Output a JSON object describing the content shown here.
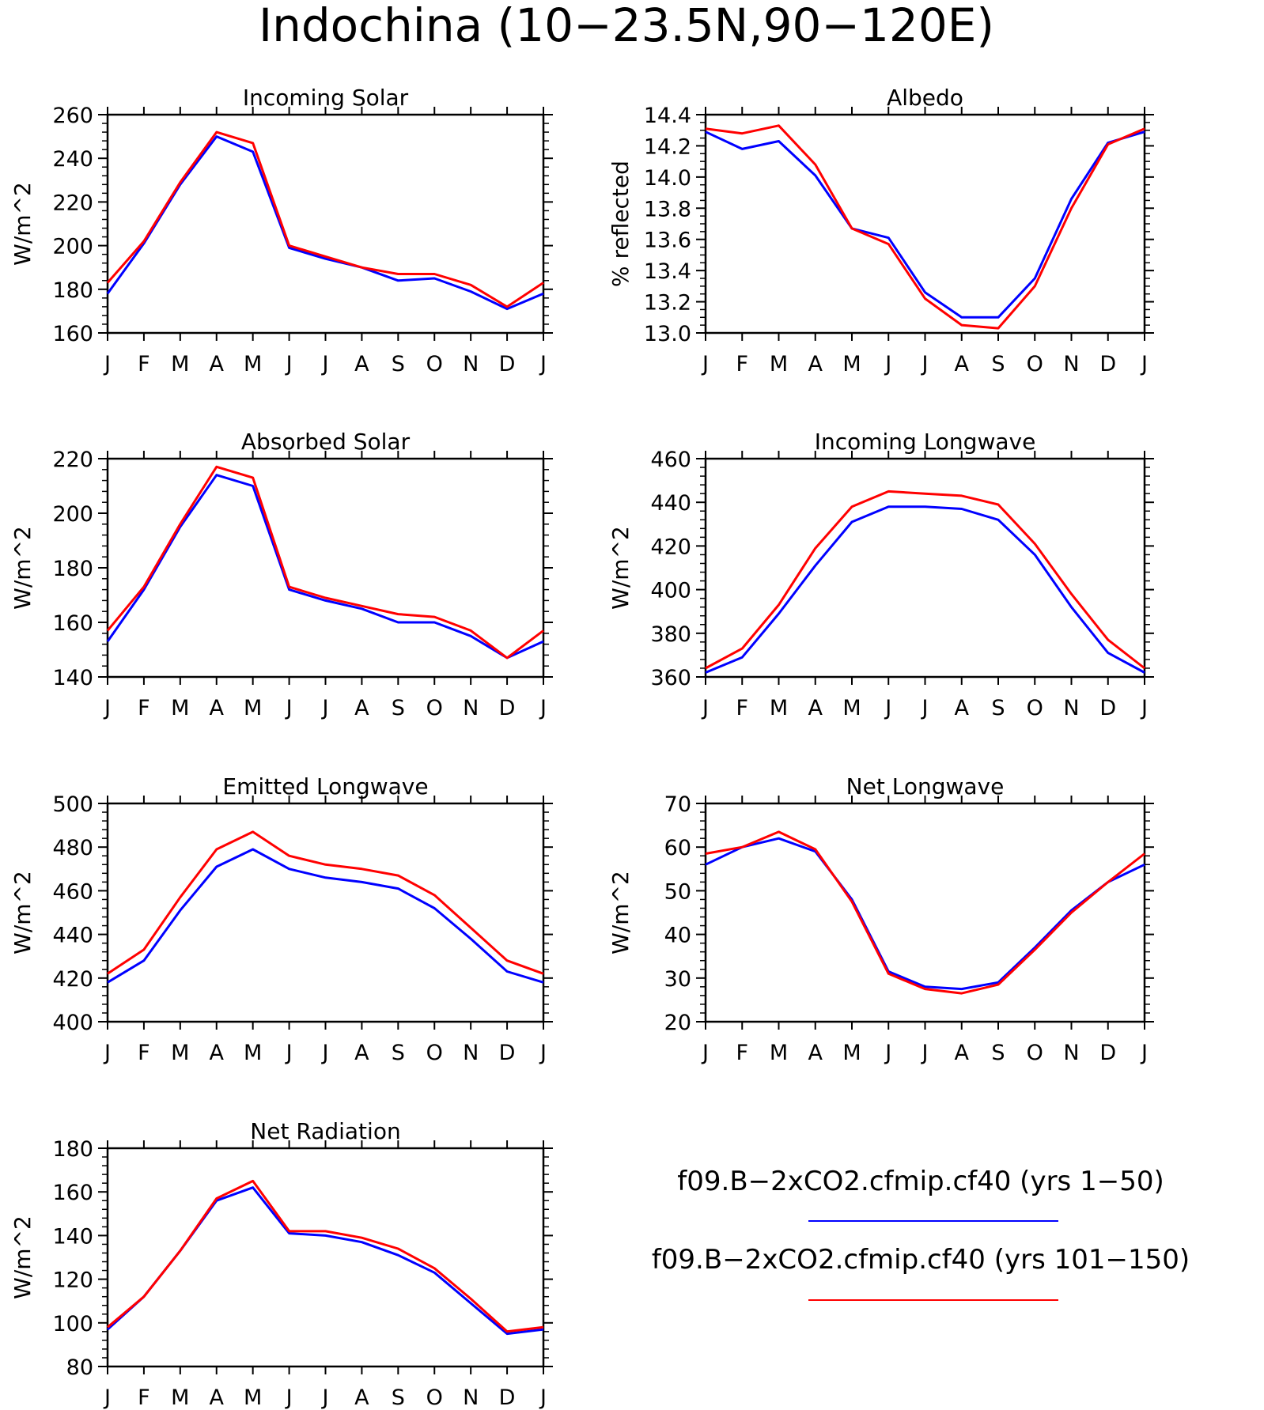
{
  "title": "Indochina (10−23.5N,90−120E)",
  "colors": {
    "series1": "#0000ff",
    "series2": "#ff0000",
    "axis": "#000000"
  },
  "legend": [
    {
      "label": "f09.B−2xCO2.cfmip.cf40 (yrs 1−50)",
      "color": "#0000ff"
    },
    {
      "label": "f09.B−2xCO2.cfmip.cf40 (yrs 101−150)",
      "color": "#ff0000"
    }
  ],
  "chart_data": [
    {
      "id": "incoming-solar",
      "type": "line",
      "title": "Incoming Solar",
      "ylabel": "W/m^2",
      "categories": [
        "J",
        "F",
        "M",
        "A",
        "M",
        "J",
        "J",
        "A",
        "S",
        "O",
        "N",
        "D",
        "J"
      ],
      "ylim": [
        160,
        260
      ],
      "yticks": [
        "160",
        "180",
        "200",
        "220",
        "240",
        "260"
      ],
      "series": [
        {
          "color": "#0000ff",
          "values": [
            178,
            201,
            228,
            250,
            243,
            199,
            194,
            190,
            184,
            185,
            179,
            171,
            178
          ]
        },
        {
          "color": "#ff0000",
          "values": [
            183,
            202,
            229,
            252,
            247,
            200,
            195,
            190,
            187,
            187,
            182,
            172,
            183
          ]
        }
      ]
    },
    {
      "id": "albedo",
      "type": "line",
      "title": "Albedo",
      "ylabel": "% reflected",
      "categories": [
        "J",
        "F",
        "M",
        "A",
        "M",
        "J",
        "J",
        "A",
        "S",
        "O",
        "N",
        "D",
        "J"
      ],
      "ylim": [
        13.0,
        14.4
      ],
      "yticks": [
        "13.0",
        "13.2",
        "13.4",
        "13.6",
        "13.8",
        "14.0",
        "14.2",
        "14.4"
      ],
      "series": [
        {
          "color": "#0000ff",
          "values": [
            14.29,
            14.18,
            14.23,
            14.01,
            13.67,
            13.61,
            13.26,
            13.1,
            13.1,
            13.35,
            13.86,
            14.22,
            14.29
          ]
        },
        {
          "color": "#ff0000",
          "values": [
            14.31,
            14.28,
            14.33,
            14.08,
            13.67,
            13.57,
            13.22,
            13.05,
            13.03,
            13.3,
            13.8,
            14.21,
            14.31
          ]
        }
      ]
    },
    {
      "id": "absorbed-solar",
      "type": "line",
      "title": "Absorbed Solar",
      "ylabel": "W/m^2",
      "categories": [
        "J",
        "F",
        "M",
        "A",
        "M",
        "J",
        "J",
        "A",
        "S",
        "O",
        "N",
        "D",
        "J"
      ],
      "ylim": [
        140,
        220
      ],
      "yticks": [
        "140",
        "160",
        "180",
        "200",
        "220"
      ],
      "series": [
        {
          "color": "#0000ff",
          "values": [
            153,
            172,
            195,
            214,
            210,
            172,
            168,
            165,
            160,
            160,
            155,
            147,
            153
          ]
        },
        {
          "color": "#ff0000",
          "values": [
            157,
            173,
            196,
            217,
            213,
            173,
            169,
            166,
            163,
            162,
            157,
            147,
            157
          ]
        }
      ]
    },
    {
      "id": "incoming-longwave",
      "type": "line",
      "title": "Incoming Longwave",
      "ylabel": "W/m^2",
      "categories": [
        "J",
        "F",
        "M",
        "A",
        "M",
        "J",
        "J",
        "A",
        "S",
        "O",
        "N",
        "D",
        "J"
      ],
      "ylim": [
        360,
        460
      ],
      "yticks": [
        "360",
        "380",
        "400",
        "420",
        "440",
        "460"
      ],
      "series": [
        {
          "color": "#0000ff",
          "values": [
            362,
            369,
            389,
            411,
            431,
            438,
            438,
            437,
            432,
            416,
            392,
            371,
            362
          ]
        },
        {
          "color": "#ff0000",
          "values": [
            364,
            373,
            393,
            419,
            438,
            445,
            444,
            443,
            439,
            421,
            398,
            377,
            364
          ]
        }
      ]
    },
    {
      "id": "emitted-longwave",
      "type": "line",
      "title": "Emitted Longwave",
      "ylabel": "W/m^2",
      "categories": [
        "J",
        "F",
        "M",
        "A",
        "M",
        "J",
        "J",
        "A",
        "S",
        "O",
        "N",
        "D",
        "J"
      ],
      "ylim": [
        400,
        500
      ],
      "yticks": [
        "400",
        "420",
        "440",
        "460",
        "480",
        "500"
      ],
      "series": [
        {
          "color": "#0000ff",
          "values": [
            418,
            428,
            451,
            471,
            479,
            470,
            466,
            464,
            461,
            452,
            438,
            423,
            418
          ]
        },
        {
          "color": "#ff0000",
          "values": [
            422,
            433,
            457,
            479,
            487,
            476,
            472,
            470,
            467,
            458,
            443,
            428,
            422
          ]
        }
      ]
    },
    {
      "id": "net-longwave",
      "type": "line",
      "title": "Net Longwave",
      "ylabel": "W/m^2",
      "categories": [
        "J",
        "F",
        "M",
        "A",
        "M",
        "J",
        "J",
        "A",
        "S",
        "O",
        "N",
        "D",
        "J"
      ],
      "ylim": [
        20,
        70
      ],
      "yticks": [
        "20",
        "30",
        "40",
        "50",
        "60",
        "70"
      ],
      "series": [
        {
          "color": "#0000ff",
          "values": [
            56,
            60,
            62,
            59,
            48,
            31.5,
            28,
            27.5,
            29,
            37,
            45.5,
            52,
            56
          ]
        },
        {
          "color": "#ff0000",
          "values": [
            58.5,
            60,
            63.5,
            59.5,
            47.5,
            31,
            27.5,
            26.5,
            28.5,
            36.5,
            45,
            52,
            58.5
          ]
        }
      ]
    },
    {
      "id": "net-radiation",
      "type": "line",
      "title": "Net Radiation",
      "ylabel": "W/m^2",
      "categories": [
        "J",
        "F",
        "M",
        "A",
        "M",
        "J",
        "J",
        "A",
        "S",
        "O",
        "N",
        "D",
        "J"
      ],
      "ylim": [
        80,
        180
      ],
      "yticks": [
        "80",
        "100",
        "120",
        "140",
        "160",
        "180"
      ],
      "series": [
        {
          "color": "#0000ff",
          "values": [
            97,
            112,
            133,
            156,
            162,
            141,
            140,
            137,
            131,
            123,
            109,
            95,
            97
          ]
        },
        {
          "color": "#ff0000",
          "values": [
            98,
            112,
            133,
            157,
            165,
            142,
            142,
            139,
            134,
            125,
            111,
            96,
            98
          ]
        }
      ]
    }
  ]
}
